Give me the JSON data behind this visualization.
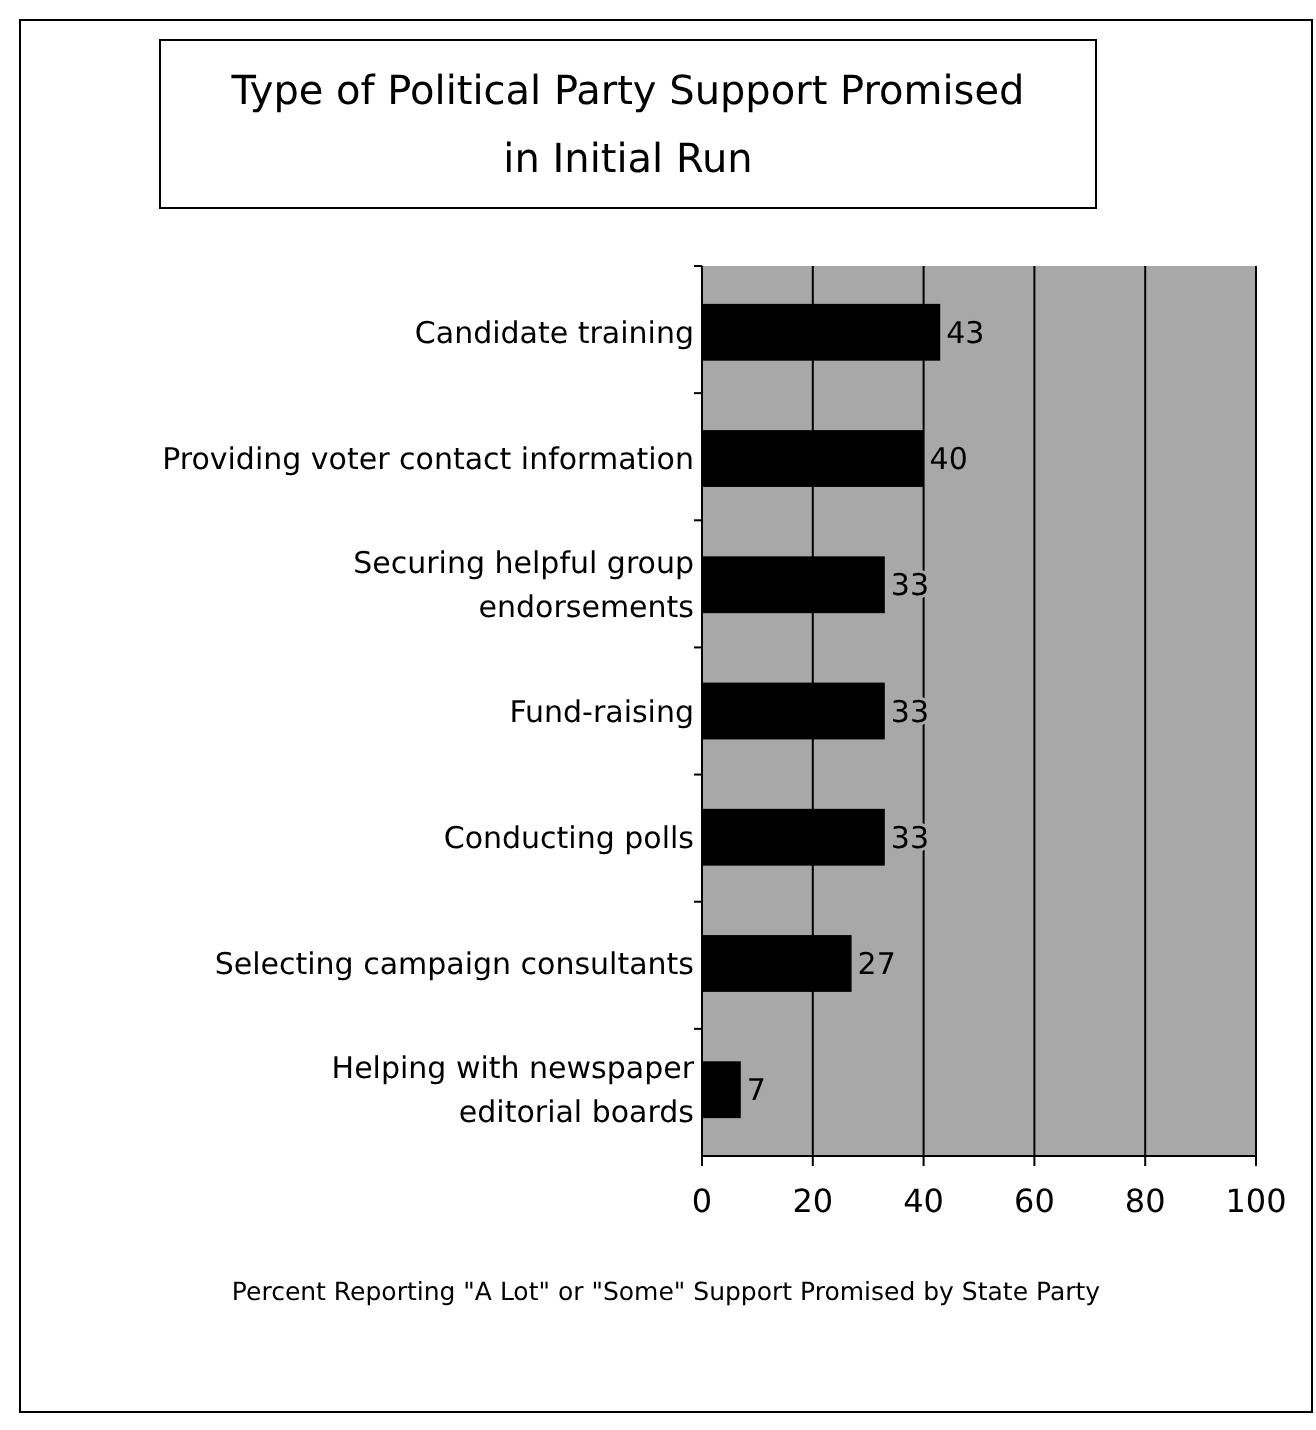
{
  "chart_data": {
    "type": "bar",
    "orientation": "horizontal",
    "title": "Type of Political Party Support Promised\nin Initial Run",
    "xlabel": "Percent Reporting \"A Lot\" or \"Some\" Support Promised by State Party",
    "categories": [
      "Candidate training",
      "Providing voter contact information",
      "Securing helpful group\nendorsements",
      "Fund-raising",
      "Conducting polls",
      "Selecting campaign consultants",
      "Helping with newspaper\neditorial boards"
    ],
    "values": [
      43,
      40,
      33,
      33,
      33,
      27,
      7
    ],
    "color": "#000000",
    "data_labels": true,
    "xlim": [
      0,
      100
    ],
    "xticks": [
      0,
      20,
      40,
      60,
      80,
      100
    ],
    "grid": "x"
  }
}
